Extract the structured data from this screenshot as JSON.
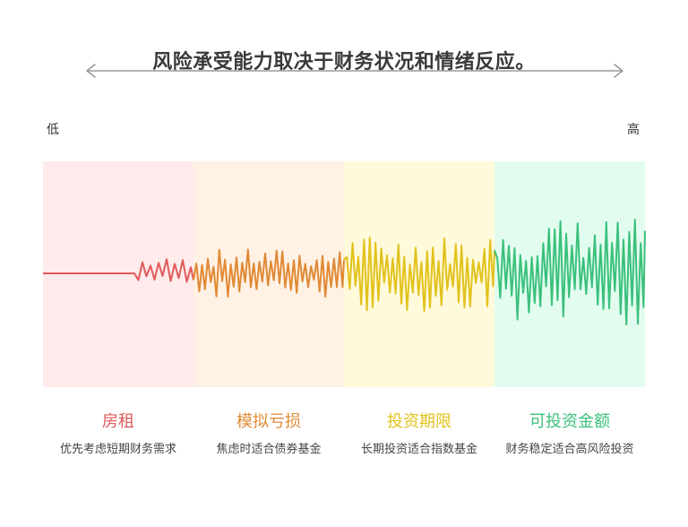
{
  "title": "风险承受能力取决于财务状况和情绪反应。",
  "scale": {
    "low": "低",
    "high": "高"
  },
  "categories": [
    {
      "label": "房租",
      "description": "优先考虑短期财务需求",
      "color": "#e05a5a",
      "background": "#ffebeb",
      "volatility": 0.1
    },
    {
      "label": "模拟亏损",
      "description": "焦虑时适合债券基金",
      "color": "#e08a35",
      "background": "#fff1e4",
      "volatility": 0.35
    },
    {
      "label": "投资期限",
      "description": "长期投资适合指数基金",
      "color": "#e2c21c",
      "background": "#fffadc",
      "volatility": 0.55
    },
    {
      "label": "可投资金额",
      "description": "财务稳定适合高风险投资",
      "color": "#3cc07c",
      "background": "#e2fdef",
      "volatility": 0.8
    }
  ]
}
